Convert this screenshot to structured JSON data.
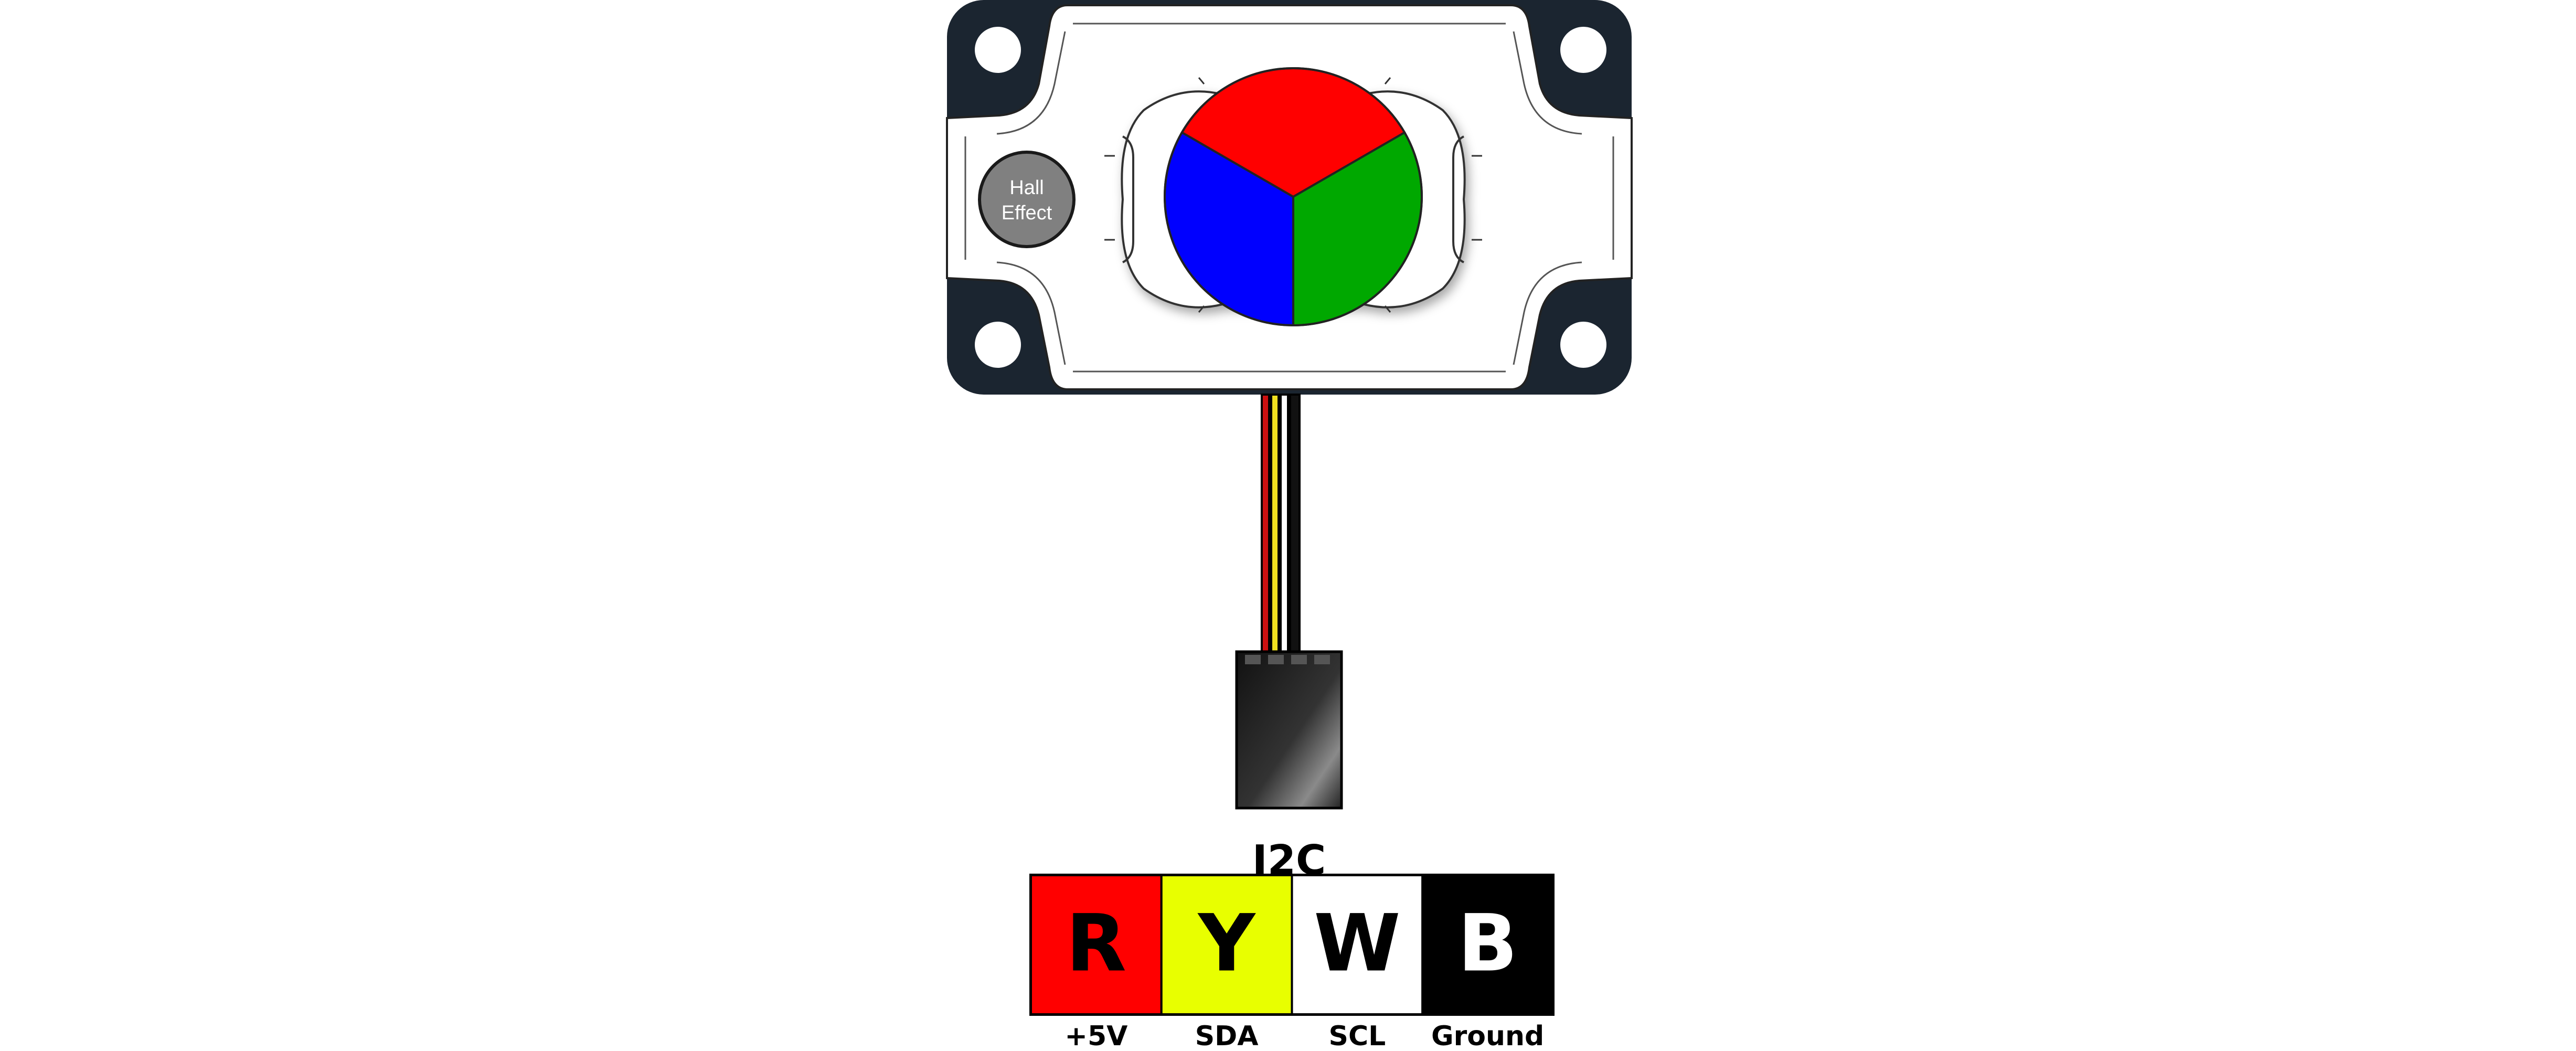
{
  "sensor": {
    "hall_label_line1": "Hall",
    "hall_label_line2": "Effect"
  },
  "connector": {
    "title": "I2C"
  },
  "pins": [
    {
      "letter": "R",
      "label": "+5V",
      "color": "#ff0000",
      "text_color": "#000000"
    },
    {
      "letter": "Y",
      "label": "SDA",
      "color": "#e8ff00",
      "text_color": "#000000"
    },
    {
      "letter": "W",
      "label": "SCL",
      "color": "#ffffff",
      "text_color": "#000000"
    },
    {
      "letter": "B",
      "label": "Ground",
      "color": "#000000",
      "text_color": "#ffffff"
    }
  ],
  "color_wheel": [
    "#ff0000",
    "#00a800",
    "#0000ff"
  ]
}
